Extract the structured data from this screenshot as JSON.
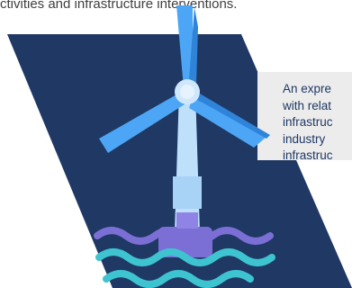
{
  "top_text": "ctivities and infrastructure interventions.",
  "callout": {
    "lines": [
      "An expre",
      "with relat",
      "infrastruc",
      "industry",
      "infrastruc"
    ]
  },
  "colors": {
    "navy": "#1f3864",
    "callout_bg": "#ececec",
    "callout_text": "#1f3864",
    "blade": "#4da6f5",
    "tower": "#bfe0fb",
    "water_teal": "#3ec4d0",
    "water_purple": "#7b6fd6"
  },
  "icon": "offshore-wind-turbine-icon"
}
